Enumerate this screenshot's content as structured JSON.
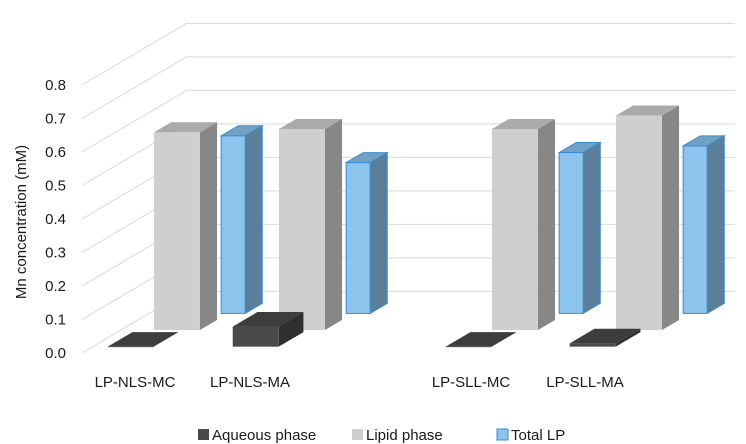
{
  "chart_data": {
    "type": "bar",
    "style": "3d-clustered-column",
    "categories": [
      "LP-NLS-MC",
      "LP-NLS-MA",
      "LP-SLL-MC",
      "LP-SLL-MA"
    ],
    "series": [
      {
        "name": "Aqueous phase",
        "values": [
          0.0,
          0.06,
          0.0,
          0.01
        ],
        "color": "#4a4a4a"
      },
      {
        "name": "Lipid phase",
        "values": [
          0.59,
          0.6,
          0.6,
          0.64
        ],
        "color": "#cfcfcf"
      },
      {
        "name": "Total LP",
        "values": [
          0.53,
          0.45,
          0.48,
          0.5
        ],
        "color": "#8cc4ee"
      }
    ],
    "ylabel": "Mn concentration (mM)",
    "yticks": [
      "0.0",
      "0.1",
      "0.2",
      "0.3",
      "0.4",
      "0.5",
      "0.6",
      "0.7",
      "0.8"
    ],
    "ylim": [
      0,
      0.8
    ],
    "grid": true,
    "legend": "bottom"
  }
}
